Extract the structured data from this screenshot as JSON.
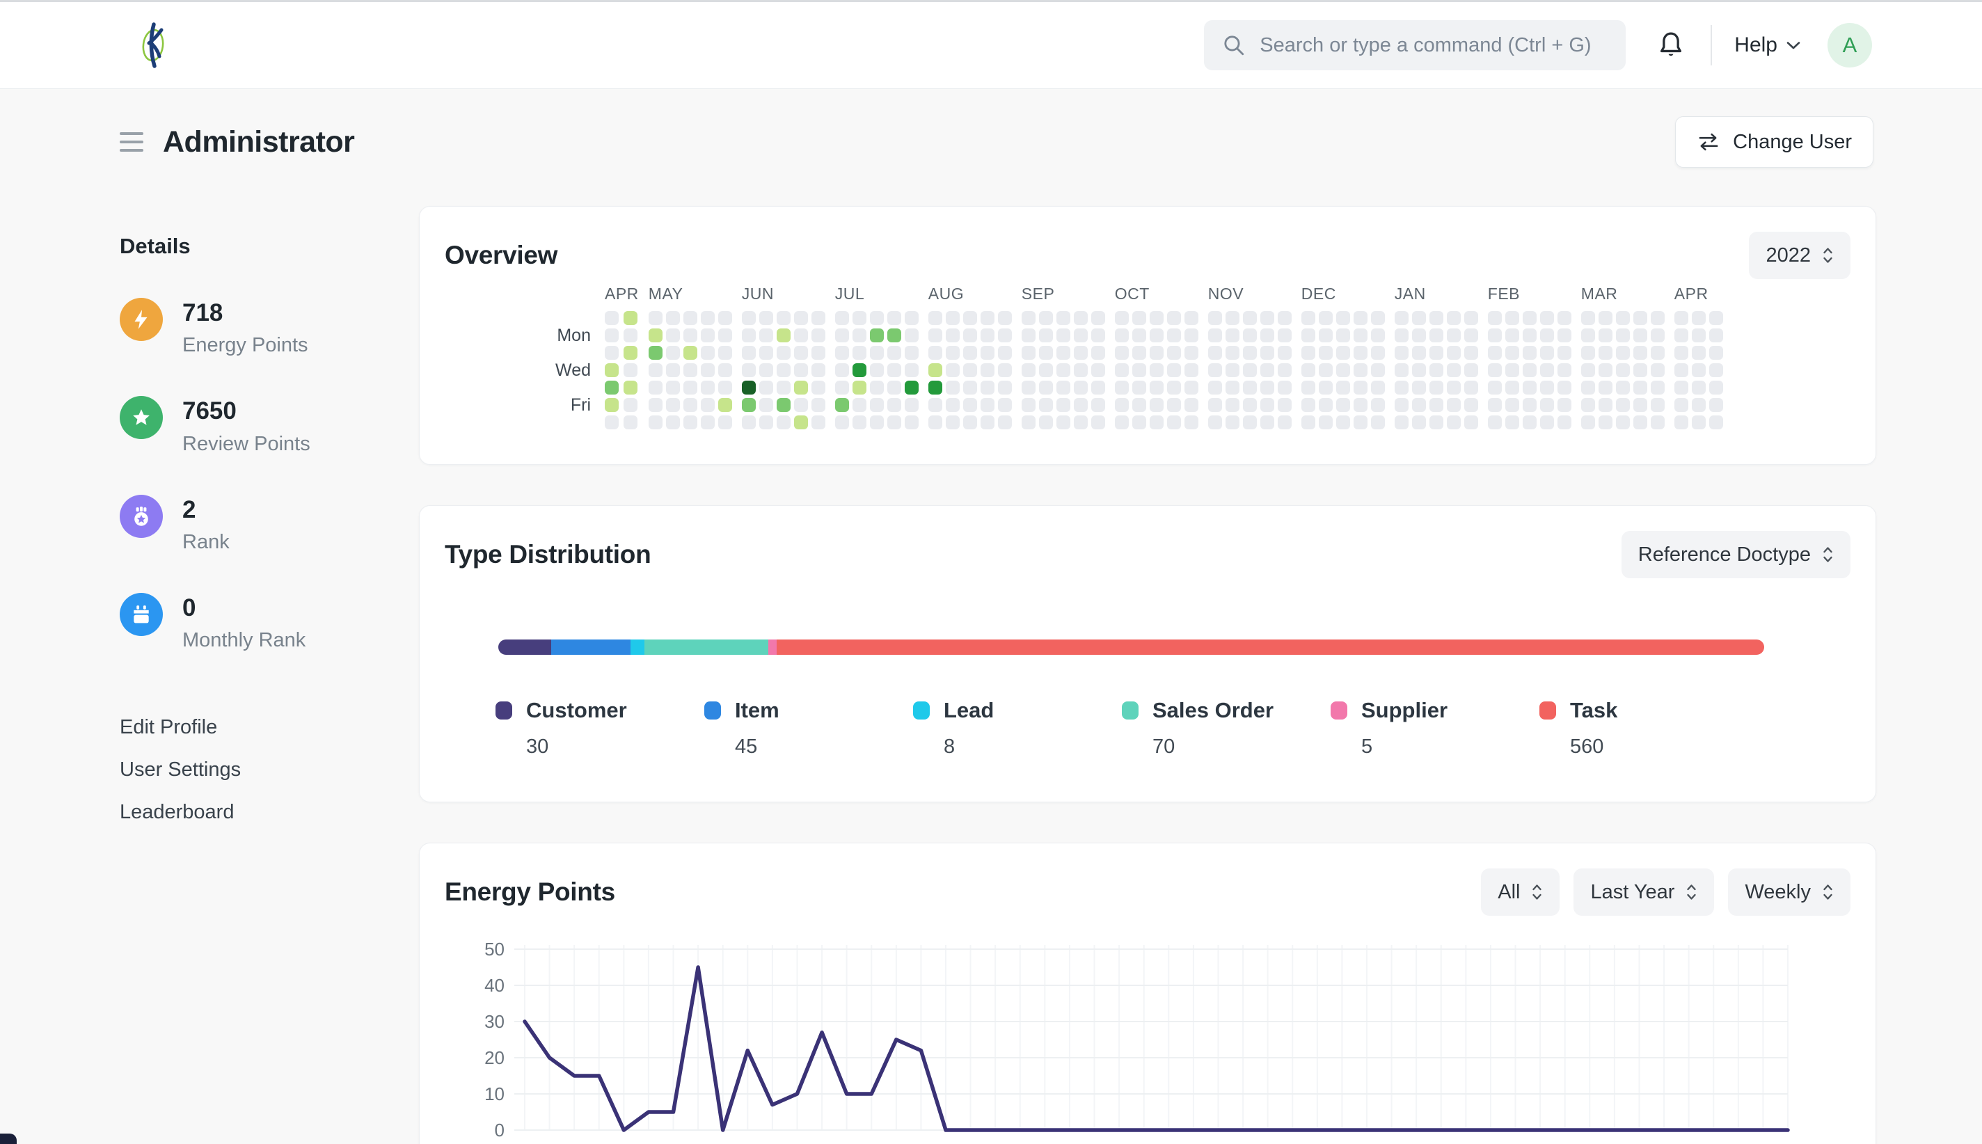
{
  "navbar": {
    "search_placeholder": "Search or type a command (Ctrl + G)",
    "help_label": "Help",
    "avatar_letter": "A"
  },
  "header": {
    "title": "Administrator",
    "change_user_label": "Change User"
  },
  "sidebar": {
    "heading": "Details",
    "stats": [
      {
        "value": "718",
        "label": "Energy Points",
        "color": "#efa63e"
      },
      {
        "value": "7650",
        "label": "Review Points",
        "color": "#3eb36c"
      },
      {
        "value": "2",
        "label": "Rank",
        "color": "#8d7bf2"
      },
      {
        "value": "0",
        "label": "Monthly Rank",
        "color": "#2b96f1"
      }
    ],
    "links": [
      "Edit Profile",
      "User Settings",
      "Leaderboard"
    ]
  },
  "overview": {
    "title": "Overview",
    "year": "2022",
    "heatmap": {
      "day_labels": [
        "Mon",
        "Wed",
        "Fri"
      ],
      "empty_color": "#e9ebef",
      "level_colors": [
        "#e9ebef",
        "#c6e48b",
        "#7bc96f",
        "#239a3b",
        "#196127"
      ],
      "months": [
        {
          "label": "APR",
          "weeks": 2
        },
        {
          "label": "MAY",
          "weeks": 5
        },
        {
          "label": "JUN",
          "weeks": 5
        },
        {
          "label": "JUL",
          "weeks": 5
        },
        {
          "label": "AUG",
          "weeks": 5
        },
        {
          "label": "SEP",
          "weeks": 5
        },
        {
          "label": "OCT",
          "weeks": 5
        },
        {
          "label": "NOV",
          "weeks": 5
        },
        {
          "label": "DEC",
          "weeks": 5
        },
        {
          "label": "JAN",
          "weeks": 5
        },
        {
          "label": "FEB",
          "weeks": 5
        },
        {
          "label": "MAR",
          "weeks": 5
        },
        {
          "label": "APR",
          "weeks": 3
        }
      ],
      "cells": [
        {
          "m": 0,
          "w": 1,
          "d": 0,
          "l": 1
        },
        {
          "m": 0,
          "w": 1,
          "d": 2,
          "l": 1
        },
        {
          "m": 0,
          "w": 0,
          "d": 3,
          "l": 1
        },
        {
          "m": 0,
          "w": 0,
          "d": 4,
          "l": 2
        },
        {
          "m": 0,
          "w": 1,
          "d": 4,
          "l": 1
        },
        {
          "m": 0,
          "w": 0,
          "d": 5,
          "l": 1
        },
        {
          "m": 1,
          "w": 0,
          "d": 1,
          "l": 1
        },
        {
          "m": 1,
          "w": 0,
          "d": 2,
          "l": 2
        },
        {
          "m": 1,
          "w": 2,
          "d": 2,
          "l": 1
        },
        {
          "m": 1,
          "w": 4,
          "d": 5,
          "l": 1
        },
        {
          "m": 2,
          "w": 2,
          "d": 1,
          "l": 1
        },
        {
          "m": 2,
          "w": 0,
          "d": 4,
          "l": 4
        },
        {
          "m": 2,
          "w": 3,
          "d": 4,
          "l": 1
        },
        {
          "m": 2,
          "w": 0,
          "d": 5,
          "l": 2
        },
        {
          "m": 2,
          "w": 2,
          "d": 5,
          "l": 2
        },
        {
          "m": 2,
          "w": 3,
          "d": 6,
          "l": 1
        },
        {
          "m": 3,
          "w": 2,
          "d": 1,
          "l": 2
        },
        {
          "m": 3,
          "w": 3,
          "d": 1,
          "l": 2
        },
        {
          "m": 3,
          "w": 1,
          "d": 3,
          "l": 3
        },
        {
          "m": 3,
          "w": 1,
          "d": 4,
          "l": 1
        },
        {
          "m": 3,
          "w": 4,
          "d": 4,
          "l": 3
        },
        {
          "m": 3,
          "w": 0,
          "d": 5,
          "l": 2
        },
        {
          "m": 4,
          "w": 0,
          "d": 3,
          "l": 1
        },
        {
          "m": 4,
          "w": 0,
          "d": 4,
          "l": 3
        }
      ]
    }
  },
  "type_distribution": {
    "title": "Type Distribution",
    "selector": "Reference Doctype",
    "chart_data": {
      "type": "bar",
      "orientation": "horizontal-stacked",
      "series": [
        {
          "name": "Customer",
          "value": 30,
          "color": "#473e7d"
        },
        {
          "name": "Item",
          "value": 45,
          "color": "#2e87e1"
        },
        {
          "name": "Lead",
          "value": 8,
          "color": "#1fc9ea"
        },
        {
          "name": "Sales Order",
          "value": 70,
          "color": "#5ed3bb"
        },
        {
          "name": "Supplier",
          "value": 5,
          "color": "#f278ab"
        },
        {
          "name": "Task",
          "value": 560,
          "color": "#f2635f"
        }
      ]
    }
  },
  "energy_points": {
    "title": "Energy Points",
    "selectors": [
      "All",
      "Last Year",
      "Weekly"
    ],
    "chart_data": {
      "type": "line",
      "title": "Energy Points",
      "ylim": [
        0,
        50
      ],
      "yticks": [
        0,
        10,
        20,
        30,
        40,
        50
      ],
      "grid": true,
      "line_color": "#3a3276",
      "values": [
        30,
        20,
        15,
        15,
        0,
        5,
        5,
        45,
        0,
        22,
        7,
        10,
        27,
        10,
        10,
        25,
        22,
        0,
        0,
        0,
        0,
        0,
        0,
        0,
        0,
        0,
        0,
        0,
        0,
        0,
        0,
        0,
        0,
        0,
        0,
        0,
        0,
        0,
        0,
        0,
        0,
        0,
        0,
        0,
        0,
        0,
        0,
        0,
        0,
        0,
        0,
        0
      ]
    }
  }
}
